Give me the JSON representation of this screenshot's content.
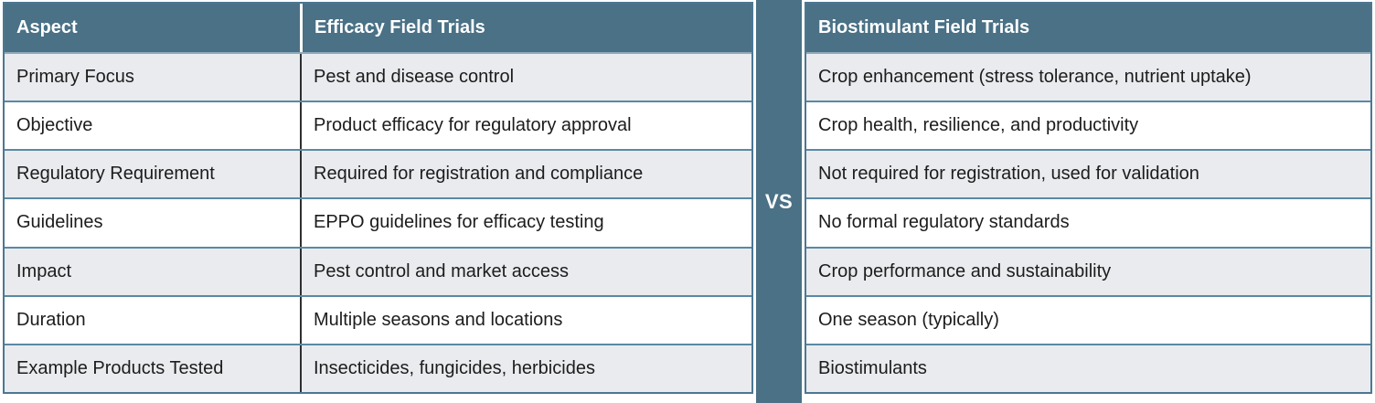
{
  "chart_data": {
    "type": "table",
    "columns": [
      "Aspect",
      "Efficacy Field Trials",
      "Biostimulant Field Trials"
    ],
    "rows": [
      [
        "Primary Focus",
        "Pest and disease control",
        "Crop enhancement (stress tolerance, nutrient uptake)"
      ],
      [
        "Objective",
        "Product efficacy for regulatory approval",
        "Crop health, resilience, and productivity"
      ],
      [
        "Regulatory Requirement",
        "Required for registration and compliance",
        "Not required for registration, used for validation"
      ],
      [
        "Guidelines",
        "EPPO guidelines for efficacy testing",
        "No formal regulatory standards"
      ],
      [
        "Impact",
        "Pest control and market access",
        "Crop performance and sustainability"
      ],
      [
        "Duration",
        "Multiple seasons and locations",
        "One season (typically)"
      ],
      [
        "Example Products Tested",
        "Insecticides, fungicides, herbicides",
        "Biostimulants"
      ]
    ]
  },
  "divider": {
    "label": "VS"
  },
  "colors": {
    "header_bg": "#4A7186",
    "header_text": "#FFFFFF",
    "row_alt_bg": "#E9EBEE",
    "row_bg": "#FFFFFF",
    "grid_line": "#5A89A3",
    "outer_border": "#4D7792",
    "column_divider": "#2F2F2F",
    "body_text": "#1C1C1C"
  }
}
